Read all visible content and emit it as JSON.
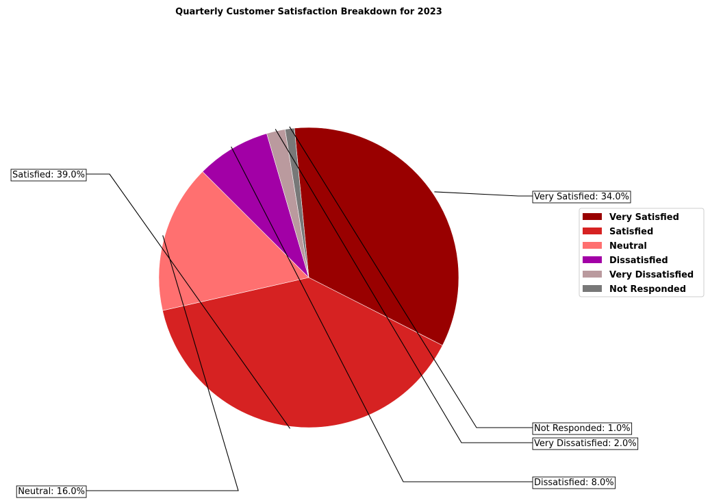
{
  "chart_data": {
    "type": "pie",
    "title": "Quarterly Customer Satisfaction Breakdown for 2023",
    "categories": [
      "Very Satisfied",
      "Satisfied",
      "Neutral",
      "Dissatisfied",
      "Very Dissatisfied",
      "Not Responded"
    ],
    "values": [
      34.0,
      39.0,
      16.0,
      8.0,
      2.0,
      1.0
    ],
    "labels": [
      "Very Satisfied: 34.0%",
      "Satisfied: 39.0%",
      "Neutral: 16.0%",
      "Dissatisfied: 8.0%",
      "Very Dissatisfied: 2.0%",
      "Not Responded: 1.0%"
    ],
    "colors": [
      "#990000",
      "#d62222",
      "#ff7070",
      "#a200a6",
      "#ba9a9e",
      "#787878"
    ],
    "legend": {
      "placement": "right",
      "entries": [
        "Very Satisfied",
        "Satisfied",
        "Neutral",
        "Dissatisfied",
        "Very Dissatisfied",
        "Not Responded"
      ]
    }
  }
}
